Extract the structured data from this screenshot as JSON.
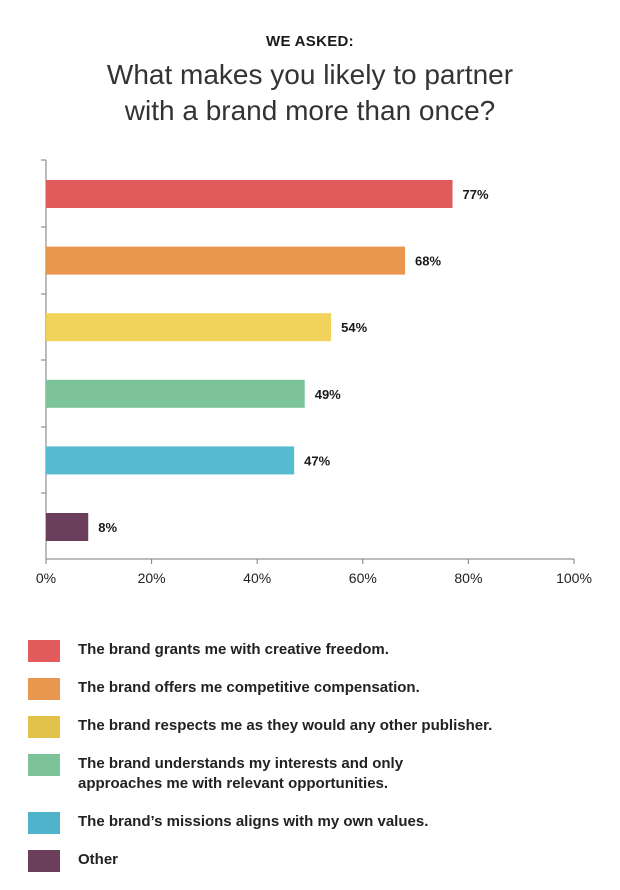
{
  "header": {
    "kicker": "WE ASKED:",
    "title_line1": "What makes you likely to partner",
    "title_line2": "with a brand more than once?"
  },
  "chart_data": {
    "type": "bar",
    "orientation": "horizontal",
    "categories": [
      "The brand grants me with creative freedom.",
      "The brand offers me competitive compensation.",
      "The brand respects me as they would any other publisher.",
      "The brand understands my interests and only approaches me with relevant opportunities.",
      "The brand’s missions aligns with my own values.",
      "Other"
    ],
    "values": [
      77,
      68,
      54,
      49,
      47,
      8
    ],
    "data_labels": [
      "77%",
      "68%",
      "54%",
      "49%",
      "47%",
      "8%"
    ],
    "colors": [
      "#e15b5d",
      "#e9974f",
      "#f1d35c",
      "#7cc39a",
      "#56bad1",
      "#6b3f5c"
    ],
    "xlim": [
      0,
      100
    ],
    "x_ticks": [
      "0%",
      "20%",
      "40%",
      "60%",
      "80%",
      "100%"
    ],
    "grid": false,
    "legend_position": "bottom"
  },
  "legend": {
    "items": [
      {
        "line1": "The brand grants me with creative freedom.",
        "line2": "",
        "color": "#e15b5d"
      },
      {
        "line1": "The brand offers me competitive compensation.",
        "line2": "",
        "color": "#e9974f"
      },
      {
        "line1": "The brand respects me as they would any other publisher.",
        "line2": "",
        "color": "#e2c24a"
      },
      {
        "line1": "The brand understands my interests and only",
        "line2": "approaches me with relevant opportunities.",
        "color": "#7cc39a"
      },
      {
        "line1": "The brand’s missions aligns with my own values.",
        "line2": "",
        "color": "#4fb3cc"
      },
      {
        "line1": "Other",
        "line2": "",
        "color": "#6b3f5c"
      }
    ]
  }
}
